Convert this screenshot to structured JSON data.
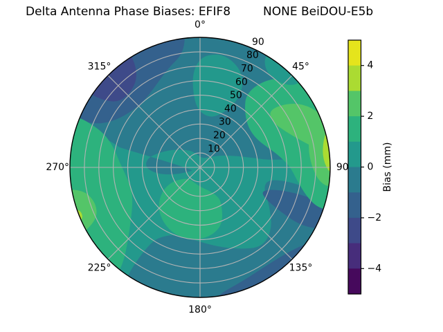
{
  "title": {
    "left": "Delta Antenna Phase Biases: EFIF8",
    "right": "NONE BeiDOU-E5b"
  },
  "colors": {
    "background": "#ffffff",
    "grid": "#b4b4b4",
    "outline": "#000000",
    "text": "#000000"
  },
  "chart_data": {
    "type": "polar_contour",
    "theta_direction": "clockwise",
    "theta_zero": "top",
    "r_max": 90,
    "r_label_angle": 22.5,
    "theta_ticks": [
      {
        "angle": 0,
        "label": "0°"
      },
      {
        "angle": 45,
        "label": "45°"
      },
      {
        "angle": 90,
        "label": "90"
      },
      {
        "angle": 135,
        "label": "135°"
      },
      {
        "angle": 180,
        "label": "180°"
      },
      {
        "angle": 225,
        "label": "225°"
      },
      {
        "angle": 270,
        "label": "270°"
      },
      {
        "angle": 315,
        "label": "315°"
      }
    ],
    "r_ticks": [
      {
        "value": 10,
        "label": "10"
      },
      {
        "value": 20,
        "label": "20"
      },
      {
        "value": 30,
        "label": "30"
      },
      {
        "value": 40,
        "label": "40"
      },
      {
        "value": 50,
        "label": "50"
      },
      {
        "value": 60,
        "label": "60"
      },
      {
        "value": 70,
        "label": "70"
      },
      {
        "value": 80,
        "label": "80"
      },
      {
        "value": 90,
        "label": "90"
      }
    ],
    "levels_mm": [
      -5,
      -4,
      -3,
      -2,
      -1,
      0,
      1,
      2,
      3,
      4,
      5
    ],
    "palette": {
      "4to5": "#e5e41c",
      "3to4": "#abdb32",
      "2to3": "#54c568",
      "1to2": "#2db27d",
      "0to1": "#23998c",
      "m1to0": "#2b7b8e",
      "m2tom1": "#34618d",
      "m3tom2": "#3e4a89",
      "m4tom3": "#472d7b",
      "m5tom4": "#46095c"
    },
    "base_band": "0to1",
    "colorbar": {
      "label": "Bias (mm)",
      "value_range": [
        -5,
        5
      ],
      "ticks": [
        {
          "value": 4,
          "label": "4"
        },
        {
          "value": 2,
          "label": "2"
        },
        {
          "value": 0,
          "label": "0"
        },
        {
          "value": -2,
          "label": "−2"
        },
        {
          "value": -4,
          "label": "−4"
        }
      ],
      "bands_top_to_bottom": [
        "4to5",
        "3to4",
        "2to3",
        "1to2",
        "0to1",
        "m1to0",
        "m2tom1",
        "m3tom2",
        "m4tom3",
        "m5tom4"
      ]
    },
    "regions": [
      {
        "name": "north-negative-area",
        "band": "m1to0",
        "value_range": [
          -1,
          0
        ],
        "points": [
          [
            285,
            98
          ],
          [
            300,
            98
          ],
          [
            315,
            98
          ],
          [
            330,
            98
          ],
          [
            345,
            98
          ],
          [
            0,
            98
          ],
          [
            15,
            98
          ],
          [
            30,
            98
          ],
          [
            45,
            98
          ],
          [
            60,
            98
          ],
          [
            75,
            98
          ],
          [
            85,
            98
          ],
          [
            85,
            52
          ],
          [
            78,
            34
          ],
          [
            68,
            22
          ],
          [
            55,
            14
          ],
          [
            40,
            9
          ],
          [
            22,
            7
          ],
          [
            5,
            7
          ],
          [
            348,
            9
          ],
          [
            332,
            13
          ],
          [
            316,
            17
          ],
          [
            302,
            23
          ],
          [
            290,
            30
          ],
          [
            280,
            37
          ],
          [
            270,
            38
          ],
          [
            261,
            30
          ],
          [
            254,
            18
          ],
          [
            249,
            8
          ],
          [
            246,
            4
          ]
        ]
      },
      {
        "name": "west-mid-teal-patch",
        "band": "0to1",
        "value_range": [
          0,
          1
        ],
        "points": [
          [
            288,
            74
          ],
          [
            284,
            56
          ],
          [
            276,
            46
          ],
          [
            266,
            40
          ],
          [
            255,
            36
          ],
          [
            245,
            36
          ],
          [
            238,
            44
          ],
          [
            236,
            58
          ],
          [
            240,
            72
          ],
          [
            247,
            82
          ],
          [
            257,
            88
          ],
          [
            268,
            87
          ],
          [
            279,
            82
          ]
        ]
      },
      {
        "name": "south-negative-area",
        "band": "m1to0",
        "value_range": [
          -1,
          0
        ],
        "points": [
          [
            106,
            98
          ],
          [
            120,
            98
          ],
          [
            135,
            98
          ],
          [
            150,
            98
          ],
          [
            165,
            98
          ],
          [
            180,
            98
          ],
          [
            195,
            98
          ],
          [
            207,
            98
          ],
          [
            214,
            98
          ],
          [
            214,
            62
          ],
          [
            206,
            52
          ],
          [
            195,
            49
          ],
          [
            182,
            51
          ],
          [
            168,
            56
          ],
          [
            154,
            63
          ],
          [
            142,
            70
          ],
          [
            131,
            66
          ],
          [
            119,
            55
          ],
          [
            108,
            46
          ],
          [
            100,
            48
          ],
          [
            99,
            62
          ],
          [
            101,
            78
          ],
          [
            103,
            90
          ]
        ]
      },
      {
        "name": "northwest-blue-band",
        "band": "m2tom1",
        "value_range": [
          -2,
          -1
        ],
        "points": [
          [
            291,
            98
          ],
          [
            305,
            98
          ],
          [
            320,
            98
          ],
          [
            335,
            98
          ],
          [
            348,
            98
          ],
          [
            354,
            98
          ],
          [
            352,
            80
          ],
          [
            342,
            72
          ],
          [
            331,
            64
          ],
          [
            319,
            60
          ],
          [
            307,
            62
          ],
          [
            297,
            69
          ],
          [
            292,
            80
          ]
        ]
      },
      {
        "name": "northwest-dark-core",
        "band": "m3tom2",
        "value_range": [
          -3,
          -2
        ],
        "points": [
          [
            303,
            98
          ],
          [
            315,
            98
          ],
          [
            329,
            98
          ],
          [
            327,
            78
          ],
          [
            317,
            70
          ],
          [
            306,
            74
          ]
        ]
      },
      {
        "name": "southeast-dark-streak",
        "band": "m2tom1",
        "value_range": [
          -2,
          -1
        ],
        "points": [
          [
            108,
            98
          ],
          [
            116,
            98
          ],
          [
            120,
            82
          ],
          [
            119,
            64
          ],
          [
            115,
            48
          ],
          [
            110,
            46
          ],
          [
            106,
            56
          ],
          [
            105,
            72
          ],
          [
            106,
            86
          ]
        ]
      },
      {
        "name": "south-rim-blue-band",
        "band": "m2tom1",
        "value_range": [
          -2,
          -1
        ],
        "points": [
          [
            121,
            98
          ],
          [
            135,
            98
          ],
          [
            150,
            98
          ],
          [
            164,
            98
          ],
          [
            177,
            98
          ],
          [
            172,
            89
          ],
          [
            159,
            84
          ],
          [
            146,
            82
          ],
          [
            133,
            85
          ],
          [
            125,
            91
          ]
        ]
      },
      {
        "name": "west-green-arc",
        "band": "1to2",
        "value_range": [
          1,
          2
        ],
        "points": [
          [
            217,
            98
          ],
          [
            230,
            98
          ],
          [
            243,
            98
          ],
          [
            256,
            98
          ],
          [
            269,
            98
          ],
          [
            281,
            98
          ],
          [
            293,
            98
          ],
          [
            291,
            74
          ],
          [
            284,
            62
          ],
          [
            274,
            56
          ],
          [
            262,
            51
          ],
          [
            250,
            50
          ],
          [
            240,
            54
          ],
          [
            231,
            62
          ],
          [
            224,
            72
          ],
          [
            219,
            84
          ]
        ]
      },
      {
        "name": "west-green-core",
        "band": "2to3",
        "value_range": [
          2,
          3
        ],
        "points": [
          [
            240,
            98
          ],
          [
            250,
            98
          ],
          [
            261,
            98
          ],
          [
            259,
            82
          ],
          [
            251,
            76
          ],
          [
            243,
            80
          ]
        ]
      },
      {
        "name": "west-rim-bright-dot",
        "band": "3to4",
        "value_range": [
          3,
          4
        ],
        "points": [
          [
            245,
            98
          ],
          [
            252,
            98
          ],
          [
            251,
            88
          ],
          [
            246,
            88
          ]
        ]
      },
      {
        "name": "south-center-green-kidney",
        "band": "1to2",
        "value_range": [
          1,
          2
        ],
        "points": [
          [
            148,
            28
          ],
          [
            158,
            42
          ],
          [
            170,
            48
          ],
          [
            185,
            51
          ],
          [
            200,
            50
          ],
          [
            214,
            46
          ],
          [
            227,
            40
          ],
          [
            238,
            31
          ],
          [
            243,
            22
          ],
          [
            236,
            14
          ],
          [
            222,
            11
          ],
          [
            206,
            11
          ],
          [
            190,
            12
          ],
          [
            175,
            14
          ],
          [
            160,
            17
          ],
          [
            150,
            22
          ]
        ]
      },
      {
        "name": "northeast-green-blob",
        "band": "1to2",
        "value_range": [
          1,
          2
        ],
        "points": [
          [
            32,
            60
          ],
          [
            36,
            74
          ],
          [
            43,
            85
          ],
          [
            52,
            93
          ],
          [
            63,
            98
          ],
          [
            75,
            98
          ],
          [
            87,
            98
          ],
          [
            99,
            98
          ],
          [
            108,
            98
          ],
          [
            109,
            86
          ],
          [
            105,
            76
          ],
          [
            98,
            68
          ],
          [
            89,
            62
          ],
          [
            80,
            54
          ],
          [
            71,
            47
          ],
          [
            60,
            43
          ],
          [
            48,
            44
          ],
          [
            38,
            50
          ]
        ]
      },
      {
        "name": "northeast-green-core",
        "band": "2to3",
        "value_range": [
          2,
          3
        ],
        "points": [
          [
            50,
            62
          ],
          [
            54,
            76
          ],
          [
            60,
            86
          ],
          [
            68,
            93
          ],
          [
            76,
            96
          ],
          [
            82,
            92
          ],
          [
            81,
            82
          ],
          [
            75,
            72
          ],
          [
            67,
            64
          ],
          [
            58,
            59
          ]
        ]
      },
      {
        "name": "east-rim-green-band",
        "band": "2to3",
        "value_range": [
          2,
          3
        ],
        "points": [
          [
            70,
            98
          ],
          [
            81,
            98
          ],
          [
            93,
            98
          ],
          [
            99,
            92
          ],
          [
            97,
            83
          ],
          [
            89,
            77
          ],
          [
            80,
            76
          ],
          [
            72,
            80
          ],
          [
            67,
            88
          ]
        ]
      },
      {
        "name": "east-rim-lime-sliver",
        "band": "3to4",
        "value_range": [
          3,
          4
        ],
        "points": [
          [
            75,
            98
          ],
          [
            84,
            98
          ],
          [
            92,
            97
          ],
          [
            93,
            90
          ],
          [
            86,
            85
          ],
          [
            78,
            87
          ],
          [
            73,
            92
          ]
        ]
      },
      {
        "name": "north-teal-tongue",
        "band": "0to1",
        "value_range": [
          0,
          1
        ],
        "points": [
          [
            3,
            78
          ],
          [
            12,
            80
          ],
          [
            22,
            74
          ],
          [
            28,
            64
          ],
          [
            29,
            52
          ],
          [
            24,
            42
          ],
          [
            15,
            36
          ],
          [
            6,
            36
          ],
          [
            358,
            40
          ],
          [
            355,
            48
          ],
          [
            355,
            62
          ],
          [
            358,
            72
          ]
        ]
      },
      {
        "name": "northeast-rim-teal-patch",
        "band": "0to1",
        "value_range": [
          0,
          1
        ],
        "points": [
          [
            33,
            98
          ],
          [
            42,
            98
          ],
          [
            50,
            92
          ],
          [
            48,
            84
          ],
          [
            40,
            79
          ],
          [
            33,
            82
          ],
          [
            30,
            90
          ]
        ]
      }
    ]
  }
}
